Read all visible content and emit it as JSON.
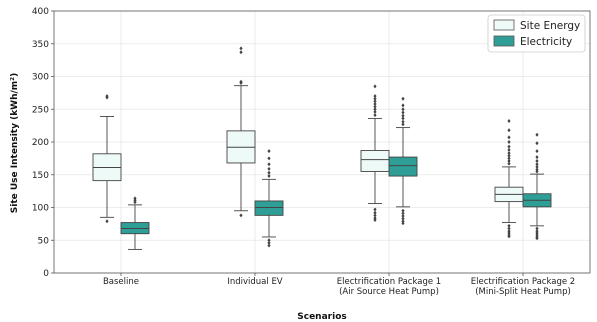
{
  "chart_data": {
    "type": "box",
    "xlabel": "Scenarios",
    "ylabel": "Site Use Intensity (kWh/m²)",
    "ylim": [
      0,
      400
    ],
    "yticks": [
      0,
      50,
      100,
      150,
      200,
      250,
      300,
      350,
      400
    ],
    "grid": true,
    "legend_position": "top-right",
    "categories": [
      [
        "Baseline"
      ],
      [
        "Individual EV"
      ],
      [
        "Electrification Package 1",
        "(Air Source Heat Pump)"
      ],
      [
        "Electrification Package 2",
        "(Mini-Split Heat Pump)"
      ]
    ],
    "series": [
      {
        "name": "Site Energy",
        "color": "#eefaf8",
        "boxes": [
          {
            "whisker_low": 85,
            "q1": 141,
            "median": 161,
            "q3": 182,
            "whisker_high": 239,
            "outliers": [
              268,
              270,
              79
            ]
          },
          {
            "whisker_low": 95,
            "q1": 168,
            "median": 192,
            "q3": 217,
            "whisker_high": 286,
            "outliers": [
              343,
              337,
              292,
              290,
              88
            ]
          },
          {
            "whisker_low": 106,
            "q1": 155,
            "median": 173,
            "q3": 187,
            "whisker_high": 236,
            "outliers": [
              285,
              270,
              266,
              262,
              258,
              254,
              250,
              246,
              241,
              97,
              92,
              88,
              84,
              81
            ]
          },
          {
            "whisker_low": 77,
            "q1": 109,
            "median": 120,
            "q3": 131,
            "whisker_high": 162,
            "outliers": [
              232,
              218,
              207,
              200,
              193,
              188,
              183,
              179,
              175,
              171,
              167,
              72,
              68,
              64,
              61,
              58,
              56
            ]
          }
        ]
      },
      {
        "name": "Electricity",
        "color": "#2f9e96",
        "boxes": [
          {
            "whisker_low": 36,
            "q1": 60,
            "median": 68,
            "q3": 77,
            "whisker_high": 104,
            "outliers": [
              114,
              111,
              108
            ]
          },
          {
            "whisker_low": 55,
            "q1": 88,
            "median": 100,
            "q3": 110,
            "whisker_high": 143,
            "outliers": [
              186,
              175,
              166,
              159,
              153,
              148,
              50,
              46,
              42
            ]
          },
          {
            "whisker_low": 101,
            "q1": 148,
            "median": 164,
            "q3": 177,
            "whisker_high": 222,
            "outliers": [
              266,
              256,
              250,
              245,
              240,
              236,
              231,
              227,
              95,
              91,
              87,
              83,
              79,
              76
            ]
          },
          {
            "whisker_low": 72,
            "q1": 101,
            "median": 111,
            "q3": 121,
            "whisker_high": 151,
            "outliers": [
              211,
              198,
              186,
              177,
              171,
              166,
              162,
              158,
              155,
              68,
              64,
              61,
              58,
              55,
              53
            ]
          }
        ]
      }
    ]
  }
}
